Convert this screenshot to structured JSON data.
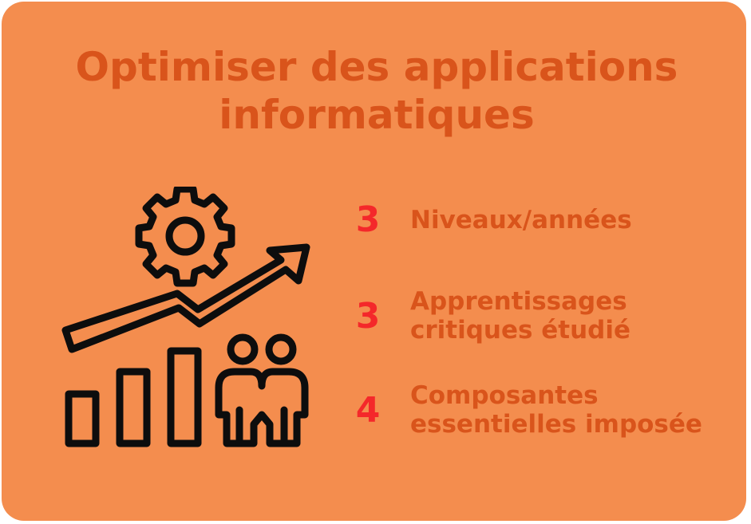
{
  "title": {
    "line1": "Optimiser des applications",
    "line2": "informatiques"
  },
  "illustration": {
    "icon": "growth-chart-gear-people-icon",
    "stroke_color": "#0d0d0d"
  },
  "stats": [
    {
      "number": "3",
      "label_line1": "Niveaux/années",
      "label_line2": ""
    },
    {
      "number": "3",
      "label_line1": "Apprentissages",
      "label_line2": "critiques étudié"
    },
    {
      "number": "4",
      "label_line1": "Composantes",
      "label_line2": "essentielles imposée"
    }
  ],
  "colors": {
    "background": "#f48d4e",
    "title": "#d9541b",
    "number": "#f4282a",
    "label": "#d9541b"
  }
}
